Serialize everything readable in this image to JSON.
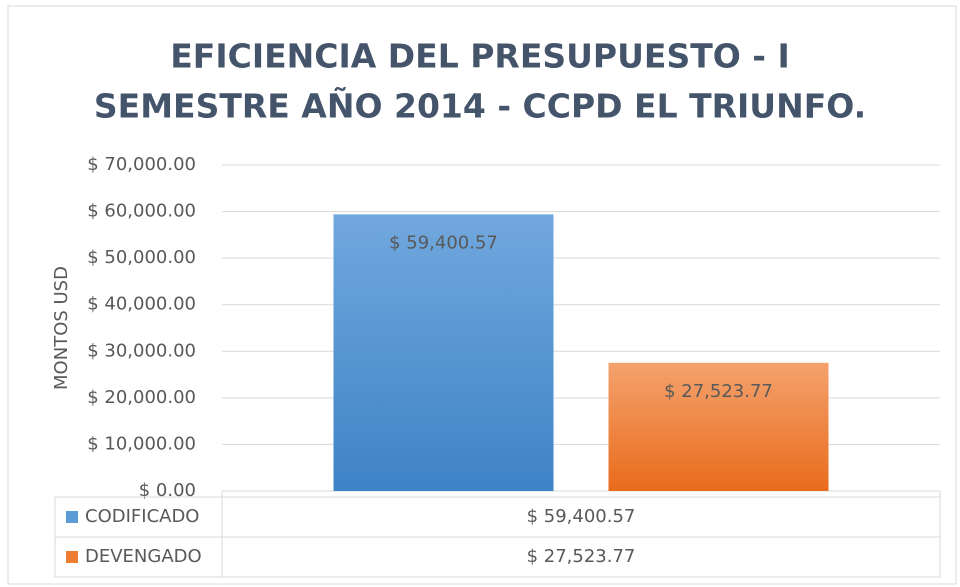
{
  "chart_data": {
    "type": "bar",
    "title": [
      "EFICIENCIA DEL PRESUPUESTO - I",
      "SEMESTRE AÑO 2014 - CCPD EL TRIUNFO."
    ],
    "y_label": "MONTOS USD",
    "categories": [
      null
    ],
    "series": [
      {
        "name": "CODIFICADO",
        "color": "#5b9bd5",
        "values": [
          59400.57
        ],
        "value_labels": [
          "$ 59,400.57"
        ]
      },
      {
        "name": "DEVENGADO",
        "color": "#ed7d31",
        "values": [
          27523.77
        ],
        "value_labels": [
          "$ 27,523.77"
        ]
      }
    ],
    "ylim": [
      0,
      70000
    ],
    "yticks": [
      {
        "value": 0,
        "label": "$ 0.00"
      },
      {
        "value": 10000,
        "label": "$ 10,000.00"
      },
      {
        "value": 20000,
        "label": "$ 20,000.00"
      },
      {
        "value": 30000,
        "label": "$ 30,000.00"
      },
      {
        "value": 40000,
        "label": "$ 40,000.00"
      },
      {
        "value": 50000,
        "label": "$ 50,000.00"
      },
      {
        "value": 60000,
        "label": "$ 60,000.00"
      },
      {
        "value": 70000,
        "label": "$ 70,000.00"
      }
    ],
    "grid": true,
    "data_table": true
  }
}
